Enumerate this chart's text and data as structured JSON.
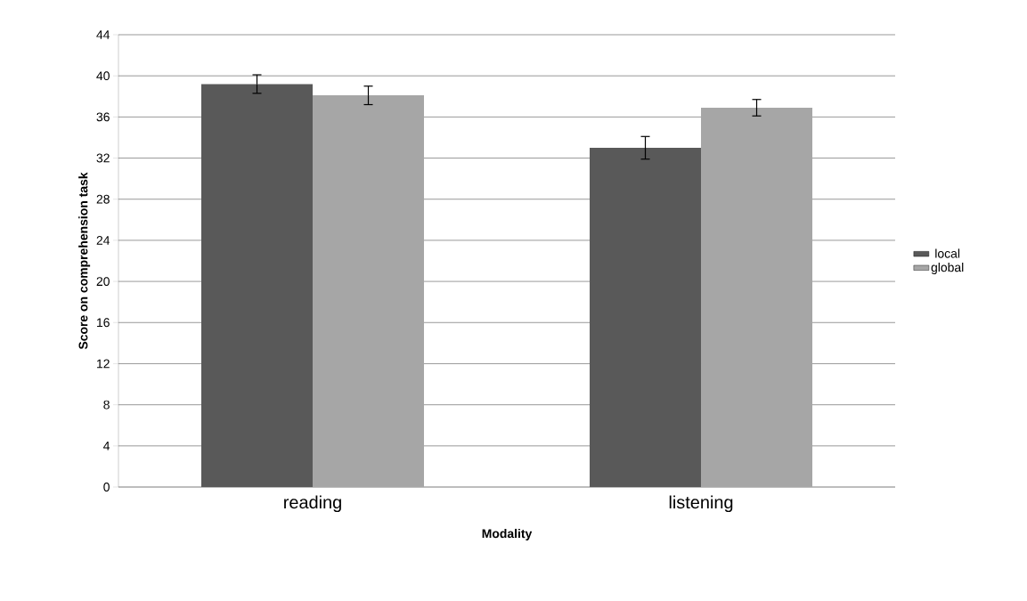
{
  "chart_data": {
    "type": "bar",
    "xlabel": "Modality",
    "ylabel": "Score on comprehension task",
    "categories": [
      "reading",
      "listening"
    ],
    "series": [
      {
        "name": "local",
        "color": "#595959",
        "values": [
          39.2,
          33.0
        ],
        "errors": [
          0.9,
          1.1
        ]
      },
      {
        "name": "global",
        "color": "#a6a6a6",
        "values": [
          38.1,
          36.9
        ],
        "errors": [
          0.9,
          0.8
        ]
      }
    ],
    "ylim": [
      0,
      44
    ],
    "yticks": [
      0,
      4,
      8,
      12,
      16,
      20,
      24,
      28,
      32,
      36,
      40,
      44
    ],
    "grid": "y",
    "legend": "right"
  }
}
